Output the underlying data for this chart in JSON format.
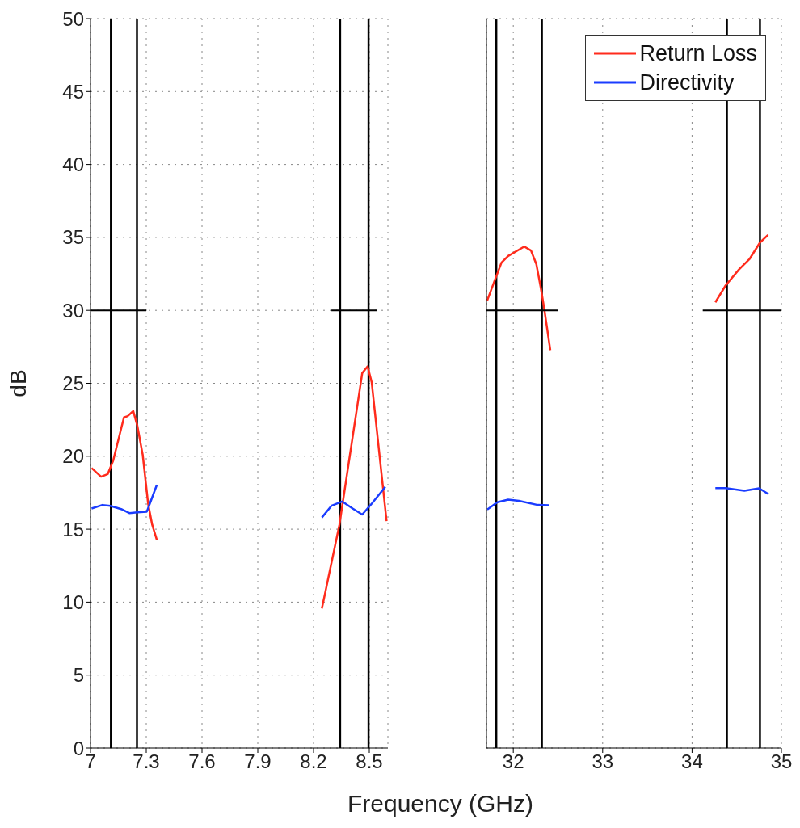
{
  "chart_data": [
    {
      "type": "line",
      "xlabel": "Frequency (GHz)",
      "ylabel": "dB",
      "xlim": [
        7,
        8.6
      ],
      "xticks": [
        7,
        7.3,
        7.6,
        7.9,
        8.2,
        8.5
      ],
      "ylim": [
        0,
        50
      ],
      "yticks": [
        0,
        5,
        10,
        15,
        20,
        25,
        30,
        35,
        40,
        45,
        50
      ],
      "grid": true,
      "series": [
        {
          "color": "#ff2b1c",
          "x": [
            7.006,
            7.057,
            7.093,
            7.122,
            7.18,
            7.2,
            7.23,
            7.252,
            7.281,
            7.31,
            7.332,
            7.357,
            7.8,
            8.245,
            8.339,
            8.462,
            8.491,
            8.513,
            8.593
          ],
          "values": [
            19.19,
            18.6,
            18.78,
            19.7,
            22.66,
            22.75,
            23.1,
            22.1,
            20.1,
            16.75,
            15.3,
            14.26,
            null,
            9.56,
            15.28,
            25.7,
            26.16,
            25.06,
            15.55
          ]
        },
        {
          "color": "#1a3cff",
          "x": [
            7.006,
            7.064,
            7.107,
            7.165,
            7.209,
            7.252,
            7.303,
            7.325,
            7.357,
            7.8,
            8.245,
            8.296,
            8.354,
            8.412,
            8.462,
            8.513,
            8.586
          ],
          "values": [
            16.42,
            16.66,
            16.6,
            16.38,
            16.1,
            16.15,
            16.2,
            16.94,
            18.04,
            null,
            15.8,
            16.6,
            16.9,
            16.4,
            16.0,
            16.75,
            17.9
          ]
        },
        {
          "color": "#000000",
          "x": [
            7,
            7.3,
            7.8,
            8.296,
            8.54
          ],
          "values": [
            30,
            30,
            null,
            30,
            30
          ]
        }
      ],
      "ref_lines": [
        {
          "axis": "x",
          "value": 7.11,
          "color": "#000000"
        },
        {
          "axis": "x",
          "value": 7.25,
          "color": "#000000"
        },
        {
          "axis": "x",
          "value": 8.343,
          "color": "#000000"
        },
        {
          "axis": "x",
          "value": 8.496,
          "color": "#000000"
        }
      ]
    },
    {
      "type": "line",
      "xlim": [
        31.7,
        35
      ],
      "xticks": [
        32,
        33,
        34,
        35
      ],
      "ylim": [
        0,
        50
      ],
      "yticks": [
        0,
        5,
        10,
        15,
        20,
        25,
        30,
        35,
        40,
        45,
        50
      ],
      "grid": true,
      "tick_labels": "x",
      "legend": "top right",
      "series": [
        {
          "name": "Return Loss",
          "color": "#ff2b1c",
          "x": [
            31.709,
            31.793,
            31.868,
            31.943,
            32.123,
            32.198,
            32.258,
            32.309,
            32.348,
            32.414,
            33.3,
            34.261,
            34.375,
            34.525,
            34.646,
            34.76,
            34.85
          ],
          "values": [
            30.68,
            32.07,
            33.27,
            33.73,
            34.37,
            34.1,
            33.17,
            31.51,
            30.04,
            27.27,
            null,
            30.55,
            31.7,
            32.8,
            33.54,
            34.65,
            35.17
          ]
        },
        {
          "name": "Directivity",
          "color": "#1a3cff",
          "x": [
            31.709,
            31.822,
            31.943,
            32.063,
            32.273,
            32.405,
            33.3,
            34.261,
            34.375,
            34.586,
            34.751,
            34.856
          ],
          "values": [
            16.35,
            16.85,
            17.03,
            16.94,
            16.66,
            16.64,
            null,
            17.82,
            17.82,
            17.64,
            17.8,
            17.4
          ]
        },
        {
          "color": "#000000",
          "x": [
            31.7,
            32.5,
            33.3,
            34.12,
            35
          ],
          "values": [
            30,
            30,
            null,
            30,
            30
          ]
        }
      ],
      "ref_lines": [
        {
          "axis": "x",
          "value": 31.81,
          "color": "#000000"
        },
        {
          "axis": "x",
          "value": 32.32,
          "color": "#000000"
        },
        {
          "axis": "x",
          "value": 34.39,
          "color": "#000000"
        },
        {
          "axis": "x",
          "value": 34.76,
          "color": "#000000"
        }
      ]
    }
  ]
}
